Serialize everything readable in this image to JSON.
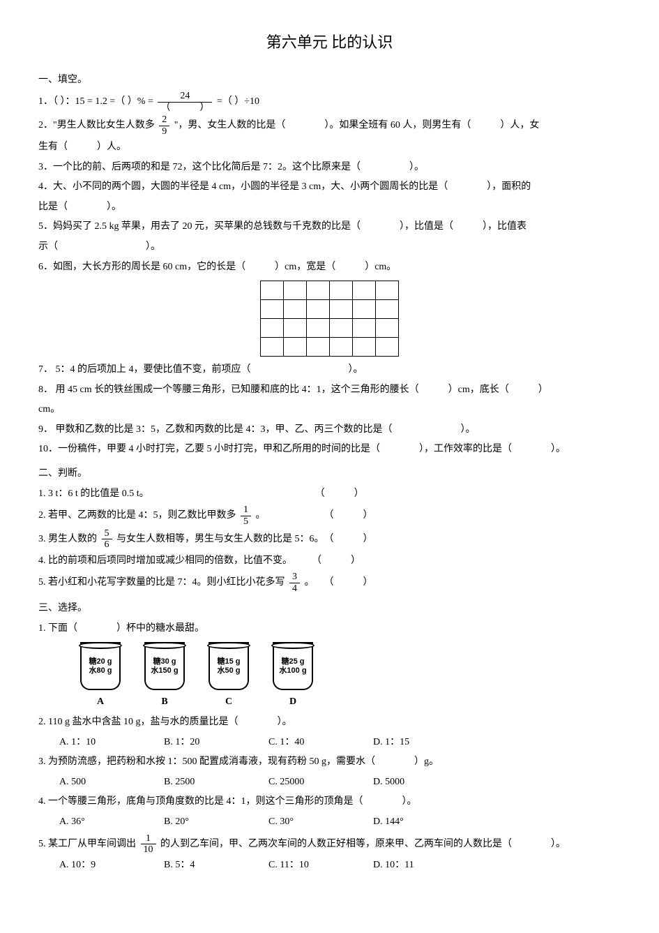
{
  "title": "第六单元  比的认识",
  "section1": {
    "heading": "一、填空。"
  },
  "q1": {
    "lead": "1．（",
    "a": "）：15 = 1.2 =（",
    "b": "）% =",
    "frac_num": "24",
    "frac_den": "（　　　）",
    "c": "=（",
    "d": "）÷10"
  },
  "q2": {
    "pre": "2．\"男生人数比女生人数多",
    "frac_num": "2",
    "frac_den": "9",
    "mid": "\"，男、女生人数的比是（　　　　）。如果全班有 60 人，则男生有（　　　）人，女",
    "line2": "生有（　　　）人。"
  },
  "q3": "3．一个比的前、后两项的和是 72，这个比化简后是 7：2。这个比原来是（　　　　　）。",
  "q4": "4．大、小不同的两个圆，大圆的半径是 4 cm，小圆的半径是 3 cm，大、小两个圆周长的比是（　　　　），面积的",
  "q4b": "比是（　　　　）。",
  "q5": "5．妈妈买了 2.5 kg 苹果，用去了 20 元，买苹果的总钱数与千克数的比是（　　　　），比值是（　　　），比值表",
  "q5b": "示（　　　　　　　　　）。",
  "q6": "6．如图，大长方形的周长是 60 cm，它的长是（　　　）cm，宽是（　　　）cm。",
  "grid": {
    "rows": 4,
    "cols": 6
  },
  "q7": "7．  5：4 的后项加上 4，要使比值不变，前项应（　　　　　　　　　　）。",
  "q8": "8．  用 45 cm 长的铁丝围成一个等腰三角形，已知腰和底的比 4：1，这个三角形的腰长（　　　）cm，底长（　　　）",
  "q8b": "cm。",
  "q9": "9．  甲数和乙数的比是 3：5，乙数和丙数的比是 4：3，甲、乙、丙三个数的比是（　　　　　　　）。",
  "q10": "10．一份稿件，甲要 4 小时打完，乙要 5 小时打完，甲和乙所用的时间的比是（　　　　），工作效率的比是（　　　　）。",
  "section2": {
    "heading": "二、判断。"
  },
  "j1": "1. 3 t：6 t 的比值是 0.5 t。　　　　　　　　　　　　　　　　　　（　　　）",
  "j2": {
    "pre": "2. 若甲、乙两数的比是 4：5，则乙数比甲数多",
    "num": "1",
    "den": "5",
    "post": "。　　　　　　　（　　　）"
  },
  "j3": {
    "pre": "3. 男生人数的",
    "num": "5",
    "den": "6",
    "post": "与女生人数相等，男生与女生人数的比是 5：6。　（　　　）"
  },
  "j4": "4. 比的前项和后项同时增加或减少相同的倍数，比值不变。　　　（　　　）",
  "j5": {
    "pre": "5. 若小红和小花写字数量的比是 7：4。则小红比小花多写",
    "num": "3",
    "den": "4",
    "post": "。　　（　　　）"
  },
  "section3": {
    "heading": "三、选择。"
  },
  "c1": "1. 下面（　　　　）杯中的糖水最甜。",
  "cups": [
    {
      "l1": "糖20 g",
      "l2": "水80 g",
      "label": "A"
    },
    {
      "l1": "糖30 g",
      "l2": "水150 g",
      "label": "B"
    },
    {
      "l1": "糖15 g",
      "l2": "水50 g",
      "label": "C"
    },
    {
      "l1": "糖25 g",
      "l2": "水100 g",
      "label": "D"
    }
  ],
  "c2": {
    "q": "2. 110 g 盐水中含盐 10 g，盐与水的质量比是（　　　　）。",
    "a": "A. 1：10",
    "b": "B. 1：20",
    "c": "C. 1：40",
    "d": "D. 1：15"
  },
  "c3": {
    "q": "3. 为预防流感，把药粉和水按 1：500 配置成消毒液，现有药粉 50 g，需要水（　　　　）g。",
    "a": "A. 500",
    "b": "B. 2500",
    "c": "C. 25000",
    "d": "D. 5000"
  },
  "c4": {
    "q": "4. 一个等腰三角形，底角与顶角度数的比是 4：1，则这个三角形的顶角是（　　　　）。",
    "a": "A. 36°",
    "b": "B. 20°",
    "c": "C. 30°",
    "d": "D. 144°"
  },
  "c5": {
    "pre": "5. 某工厂从甲车间调出",
    "num": "1",
    "den": "10",
    "post": "的人到乙车间，甲、乙两次车间的人数正好相等，原来甲、乙两车间的人数比是（　　　　）。",
    "a": "A. 10：9",
    "b": "B. 5：4",
    "c": "C. 11：10",
    "d": "D. 10：11"
  }
}
